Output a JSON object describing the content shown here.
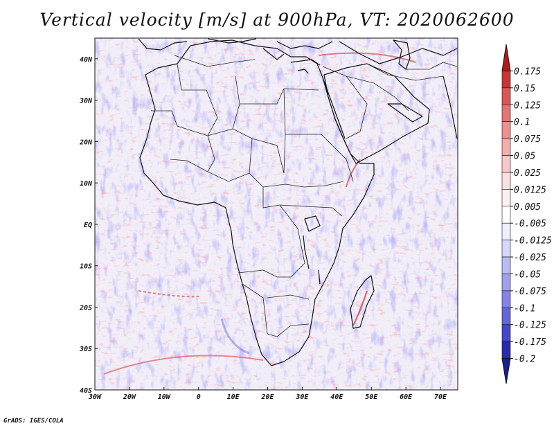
{
  "title": "Vertical velocity [m/s] at 900hPa, VT: 2020062600",
  "footer": "GrADS: IGES/COLA",
  "map": {
    "lon_range": [
      -30,
      75
    ],
    "lat_range": [
      -40,
      45
    ],
    "lon_ticks": [
      {
        "value": -30,
        "label": "30W"
      },
      {
        "value": -20,
        "label": "20W"
      },
      {
        "value": -10,
        "label": "10W"
      },
      {
        "value": 0,
        "label": "0"
      },
      {
        "value": 10,
        "label": "10E"
      },
      {
        "value": 20,
        "label": "20E"
      },
      {
        "value": 30,
        "label": "30E"
      },
      {
        "value": 40,
        "label": "40E"
      },
      {
        "value": 50,
        "label": "50E"
      },
      {
        "value": 60,
        "label": "60E"
      },
      {
        "value": 70,
        "label": "70E"
      }
    ],
    "lat_ticks": [
      {
        "value": 40,
        "label": "40N"
      },
      {
        "value": 30,
        "label": "30N"
      },
      {
        "value": 20,
        "label": "20N"
      },
      {
        "value": 10,
        "label": "10N"
      },
      {
        "value": 0,
        "label": "EQ"
      },
      {
        "value": -10,
        "label": "10S"
      },
      {
        "value": -20,
        "label": "20S"
      },
      {
        "value": -30,
        "label": "30S"
      },
      {
        "value": -40,
        "label": "40S"
      }
    ]
  },
  "colorbar": {
    "levels": [
      {
        "label": "0.175",
        "color": "#b3191c"
      },
      {
        "label": "0.15",
        "color": "#cc3333"
      },
      {
        "label": "0.125",
        "color": "#dd5555"
      },
      {
        "label": "0.1",
        "color": "#e77373"
      },
      {
        "label": "0.075",
        "color": "#ee9090"
      },
      {
        "label": "0.05",
        "color": "#f4aeae"
      },
      {
        "label": "0.025",
        "color": "#f8c8c8"
      },
      {
        "label": "0.0125",
        "color": "#fce0e0"
      },
      {
        "label": "0.005",
        "color": "#fef0f0"
      },
      {
        "label": "-0.005",
        "color": "#ffffff"
      },
      {
        "label": "-0.0125",
        "color": "#eeeeff"
      },
      {
        "label": "-0.025",
        "color": "#d8d8fa"
      },
      {
        "label": "-0.05",
        "color": "#bcbcf5"
      },
      {
        "label": "-0.075",
        "color": "#a0a0ee"
      },
      {
        "label": "-0.1",
        "color": "#8484e6"
      },
      {
        "label": "-0.125",
        "color": "#6464dc"
      },
      {
        "label": "-0.175",
        "color": "#4646cc"
      },
      {
        "label": "-0.2",
        "color": "#2a2aae"
      }
    ],
    "bottom_color": "#1c1c96"
  }
}
